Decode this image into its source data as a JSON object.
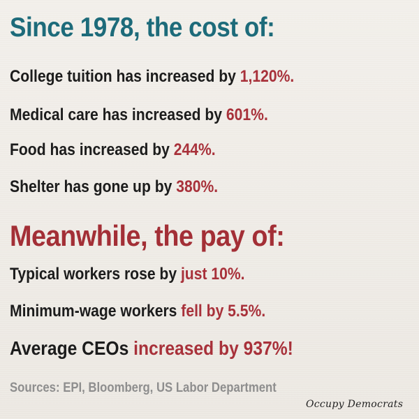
{
  "heading_cost": "Since 1978, the cost of:",
  "cost_items": [
    {
      "text": "College tuition has increased by ",
      "value": "1,120%."
    },
    {
      "text": "Medical care has increased by ",
      "value": "601%."
    },
    {
      "text": "Food has increased by ",
      "value": "244%."
    },
    {
      "text": "Shelter has gone up by ",
      "value": "380%."
    }
  ],
  "heading_pay": "Meanwhile, the pay of:",
  "pay_items": [
    {
      "text": "Typical workers rose by ",
      "value": "just 10%."
    },
    {
      "text": "Minimum-wage workers ",
      "value": "fell by 5.5%."
    },
    {
      "text": "Average CEOs ",
      "value": "increased by 937%!"
    }
  ],
  "sources": "Sources: EPI, Bloomberg, US Labor Department",
  "brand": "Occupy Democrats",
  "colors": {
    "heading_teal": "#1d6b7a",
    "heading_red": "#a32f36",
    "highlight_red": "#a8313a",
    "body_text": "#1c1c1c",
    "sources_gray": "#8e8e8e",
    "background": "#eeebe6"
  }
}
